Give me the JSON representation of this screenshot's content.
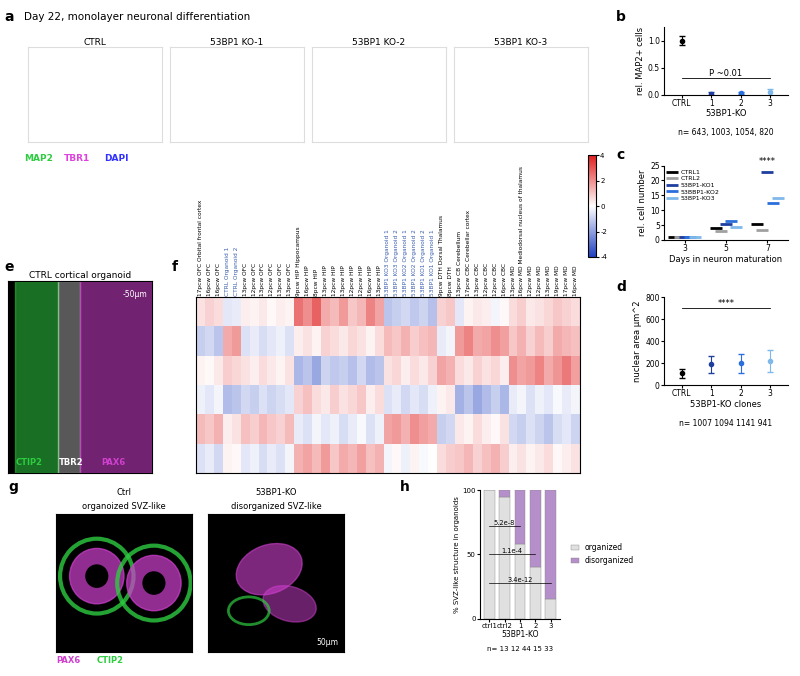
{
  "panel_labels": [
    "a",
    "b",
    "c",
    "d",
    "e",
    "f",
    "g",
    "h"
  ],
  "panel_a": {
    "title": "Day 22, monolayer neuronal differentiation",
    "images": [
      "CTRL",
      "53BP1 KO-1",
      "53BP1 KO-2",
      "53BP1 KO-3"
    ],
    "channels": [
      {
        "name": "MAP2",
        "color": "#2ecc40"
      },
      {
        "name": "TBR1",
        "color": "#e040e0"
      },
      {
        "name": "DAPI",
        "color": "#3030ff"
      }
    ]
  },
  "panel_e": {
    "title": "CTRL cortical organoid",
    "scale_bar": "-50µm",
    "channels": [
      {
        "name": "CTIP2",
        "color": "#2ecc40"
      },
      {
        "name": "TBR2",
        "color": "#ffffff"
      },
      {
        "name": "PAX6",
        "color": "#d040d0"
      }
    ]
  },
  "panel_g": {
    "images": [
      {
        "title": "Ctrl",
        "subtitle": "organoized SVZ-like"
      },
      {
        "title": "53BP1-KO",
        "subtitle": "disorganized SVZ-like"
      }
    ],
    "channels": [
      {
        "name": "PAX6",
        "color": "#d040d0"
      },
      {
        "name": "CTIP2",
        "color": "#2ecc40"
      }
    ],
    "scale_bar": "50µm"
  },
  "chart_data": [
    {
      "type": "dot",
      "panel": "b",
      "categories": [
        "CTRL",
        "1",
        "2",
        "3"
      ],
      "values": [
        1.0,
        0.02,
        0.03,
        0.05
      ],
      "errors": [
        0.08,
        0.02,
        0.02,
        0.05
      ],
      "colors": [
        "#000000",
        "#1f3f9f",
        "#2a6fdb",
        "#7fb8ea"
      ],
      "ylabel": "rel. MAP2+ cells",
      "xlabel": "53BP1-KO",
      "note": "n= 643, 1003, 1054, 820",
      "annotation": "P ~0.01",
      "ylim": [
        0,
        1.25
      ],
      "yticks": [
        {
          "value": 0,
          "label": "0.0"
        },
        {
          "value": 0.5,
          "label": "0.5"
        },
        {
          "value": 1.0,
          "label": "1.0"
        }
      ]
    },
    {
      "type": "dot",
      "panel": "c",
      "x": [
        3,
        5,
        7
      ],
      "marker": "dash",
      "series": [
        {
          "name": "CTRL1",
          "color": "#000000",
          "values": [
            1,
            4,
            5.5
          ]
        },
        {
          "name": "CTRL2",
          "color": "#a0a0a0",
          "values": [
            1,
            3,
            3.5
          ]
        },
        {
          "name": "53BP1-KO1",
          "color": "#1f3f9f",
          "values": [
            1,
            5.5,
            23
          ]
        },
        {
          "name": "53BBP1-KO2",
          "color": "#2a6fdb",
          "values": [
            1,
            6.5,
            12.5
          ]
        },
        {
          "name": "53BP1-KO3",
          "color": "#7fb8ea",
          "values": [
            1,
            4.5,
            14
          ]
        }
      ],
      "xlabel": "Days in neuron maturation",
      "ylabel": "rel. cell number",
      "annotation": "****",
      "xlim": [
        2,
        8
      ],
      "xticks": [
        3,
        5,
        7
      ],
      "ylim": [
        0,
        25
      ],
      "yticks": [
        0,
        5,
        10,
        15,
        20,
        25
      ],
      "legend": "upper left"
    },
    {
      "type": "dot",
      "panel": "d",
      "categories": [
        "CTRL",
        "1",
        "2",
        "3"
      ],
      "values": [
        110,
        190,
        200,
        220
      ],
      "errors": [
        40,
        80,
        85,
        100
      ],
      "colors": [
        "#000000",
        "#1f3f9f",
        "#2a6fdb",
        "#7fb8ea"
      ],
      "ylabel": "nuclear area µm^2",
      "xlabel": "53BP1-KO clones",
      "note": "n= 1007 1094 1141 941",
      "annotation": "****",
      "ylim": [
        0,
        800
      ],
      "yticks": [
        0,
        200,
        400,
        600,
        800
      ]
    },
    {
      "type": "heatmap",
      "panel": "f",
      "columns": [
        {
          "label": "17pcw OFC Orbital frontal cortex",
          "color": "#000000"
        },
        {
          "label": "16pcw OFC",
          "color": "#000000"
        },
        {
          "label": "16pcw OFC",
          "color": "#000000"
        },
        {
          "label": "CTRL Organoid 1",
          "color": "#3a5fb0"
        },
        {
          "label": "CTRL Organoid 2",
          "color": "#3a5fb0"
        },
        {
          "label": "13pcw OFC",
          "color": "#000000"
        },
        {
          "label": "12pcw OFC",
          "color": "#000000"
        },
        {
          "label": "13pcw OFC",
          "color": "#000000"
        },
        {
          "label": "12pcw OFC",
          "color": "#000000"
        },
        {
          "label": "13pcw OFC",
          "color": "#000000"
        },
        {
          "label": "13pcw OFC",
          "color": "#000000"
        },
        {
          "label": "9pcw HIP Hippocampus",
          "color": "#000000"
        },
        {
          "label": "16pcw HIP",
          "color": "#000000"
        },
        {
          "label": "8pcw HIP",
          "color": "#000000"
        },
        {
          "label": "13pcw HIP",
          "color": "#000000"
        },
        {
          "label": "12pcw HIP",
          "color": "#000000"
        },
        {
          "label": "13pcw HIP",
          "color": "#000000"
        },
        {
          "label": "12pcw HIP",
          "color": "#000000"
        },
        {
          "label": "12pcw HIP",
          "color": "#000000"
        },
        {
          "label": "16pcw HIP",
          "color": "#000000"
        },
        {
          "label": "13pcw HIP",
          "color": "#000000"
        },
        {
          "label": "53BP1 KO3 Organoid 1",
          "color": "#3a5fb0"
        },
        {
          "label": "53BP1 KO3 Organoid 2",
          "color": "#3a5fb0"
        },
        {
          "label": "53BP1 KO2 Organoid 1",
          "color": "#3a5fb0"
        },
        {
          "label": "53BP1 KO2 Organoid 2",
          "color": "#3a5fb0"
        },
        {
          "label": "53BP1 KO1 Organoid 2",
          "color": "#3a5fb0"
        },
        {
          "label": "53BP1 KO1 Organoid 1",
          "color": "#3a5fb0"
        },
        {
          "label": "9pcw DTH Dorsal Thalamus",
          "color": "#000000"
        },
        {
          "label": "8pcw DTH",
          "color": "#000000"
        },
        {
          "label": "13pcw CB Cerebellum",
          "color": "#000000"
        },
        {
          "label": "17pcw CBC Cerebellar cortex",
          "color": "#000000"
        },
        {
          "label": "13pcw CBC",
          "color": "#000000"
        },
        {
          "label": "12pcw CBC",
          "color": "#000000"
        },
        {
          "label": "12pcw CBC",
          "color": "#000000"
        },
        {
          "label": "16pcw CBC",
          "color": "#000000"
        },
        {
          "label": "13pcw MD",
          "color": "#000000"
        },
        {
          "label": "16pcw MD Mediodorsal nucleus of thalamus",
          "color": "#000000"
        },
        {
          "label": "12pcw MD",
          "color": "#000000"
        },
        {
          "label": "12pcw MD",
          "color": "#000000"
        },
        {
          "label": "13pcw MD",
          "color": "#000000"
        },
        {
          "label": "19pcw MD",
          "color": "#000000"
        },
        {
          "label": "17pcw MD",
          "color": "#000000"
        },
        {
          "label": "16pcw MD",
          "color": "#000000"
        }
      ],
      "cells": [
        [
          0.5,
          0.8,
          0.6,
          -0.5,
          -0.4,
          0.3,
          0.2,
          0.4,
          0.1,
          0.3,
          0.2,
          2.5,
          2.0,
          2.8,
          1.5,
          1.2,
          1.8,
          1.0,
          1.3,
          2.2,
          1.6,
          -1.2,
          -1.0,
          -0.8,
          -1.1,
          -0.9,
          -1.3,
          0.8,
          1.0,
          -0.5,
          0.2,
          0.4,
          0.3,
          -0.2,
          0.1,
          0.6,
          0.9,
          0.4,
          0.5,
          0.7,
          1.0,
          0.8,
          0.6
        ],
        [
          -1.0,
          -0.8,
          -1.2,
          1.5,
          1.8,
          -0.6,
          -0.4,
          -0.7,
          -0.5,
          -0.3,
          -0.6,
          0.3,
          0.5,
          0.2,
          0.8,
          0.6,
          0.4,
          0.7,
          0.5,
          0.2,
          0.6,
          1.2,
          1.0,
          1.4,
          0.9,
          1.1,
          1.3,
          -0.4,
          -0.2,
          1.8,
          2.2,
          1.5,
          1.6,
          2.0,
          1.7,
          1.0,
          1.4,
          0.8,
          1.2,
          0.9,
          1.5,
          1.3,
          1.1
        ],
        [
          0.2,
          0.1,
          0.4,
          0.9,
          0.7,
          0.5,
          0.3,
          0.6,
          0.4,
          0.2,
          0.5,
          -1.5,
          -1.2,
          -1.8,
          -0.9,
          -1.1,
          -1.0,
          -1.3,
          -0.8,
          -1.4,
          -1.2,
          0.5,
          0.7,
          0.3,
          0.6,
          0.4,
          0.8,
          1.6,
          1.4,
          0.6,
          0.4,
          0.8,
          0.5,
          0.7,
          0.3,
          2.0,
          1.6,
          1.8,
          2.2,
          1.5,
          1.9,
          2.4,
          1.7
        ],
        [
          -0.3,
          -0.5,
          -0.2,
          -1.4,
          -1.2,
          -0.8,
          -1.0,
          -0.6,
          -0.9,
          -0.7,
          -0.5,
          0.8,
          1.1,
          0.6,
          0.4,
          0.9,
          0.5,
          0.7,
          1.0,
          0.3,
          0.6,
          -0.6,
          -0.4,
          -0.8,
          -0.5,
          -0.7,
          -0.3,
          0.2,
          0.4,
          -1.6,
          -1.2,
          -1.8,
          -1.4,
          -1.0,
          -1.5,
          -0.4,
          -0.2,
          -0.6,
          -0.3,
          -0.5,
          -0.1,
          -0.4,
          -0.2
        ],
        [
          1.2,
          1.0,
          1.4,
          0.3,
          0.5,
          1.1,
          0.9,
          1.3,
          1.0,
          0.8,
          1.2,
          -0.4,
          -0.6,
          -0.2,
          -0.5,
          -0.3,
          -0.7,
          -0.4,
          -0.1,
          -0.6,
          -0.3,
          1.6,
          1.8,
          1.4,
          2.0,
          1.7,
          1.5,
          -1.0,
          -0.8,
          0.4,
          0.2,
          0.6,
          0.3,
          0.1,
          0.5,
          -0.8,
          -1.0,
          -0.6,
          -0.9,
          -1.2,
          -0.7,
          -0.5,
          -0.9
        ],
        [
          -0.6,
          -0.4,
          -0.8,
          0.2,
          0.1,
          -0.5,
          -0.3,
          -0.7,
          -0.4,
          -0.6,
          -0.2,
          1.4,
          1.6,
          1.2,
          1.8,
          1.0,
          1.5,
          1.3,
          1.7,
          1.1,
          1.4,
          -0.2,
          0.1,
          -0.3,
          0.2,
          -0.1,
          0.0,
          0.6,
          0.9,
          1.0,
          1.3,
          0.8,
          1.1,
          1.4,
          0.9,
          0.3,
          0.5,
          0.2,
          0.4,
          0.6,
          0.1,
          0.3,
          0.5
        ]
      ],
      "colorbar_lim": [
        -4,
        4
      ],
      "colorbar_ticks": [
        -4,
        -2,
        0,
        2,
        4
      ]
    },
    {
      "type": "bar",
      "panel": "h",
      "stacked": true,
      "categories": [
        "ctrl1",
        "ctrl2",
        "1",
        "2",
        "3"
      ],
      "series": [
        {
          "name": "organized",
          "color": "#e0e0e0",
          "values": [
            100,
            95,
            58,
            40,
            15
          ]
        },
        {
          "name": "disorganized",
          "color": "#b58fc9",
          "values": [
            0,
            5,
            42,
            60,
            85
          ]
        }
      ],
      "ylabel": "% SVZ-like structure in organoids",
      "xlabel": "53BP1-KO",
      "note": "n= 13 12 44 15 33",
      "annotations": [
        "5.2e-8",
        "1.1e-4",
        "3.4e-12"
      ],
      "ylim": [
        0,
        100
      ],
      "yticks": [
        0,
        50,
        100
      ],
      "legend": "center left"
    }
  ]
}
